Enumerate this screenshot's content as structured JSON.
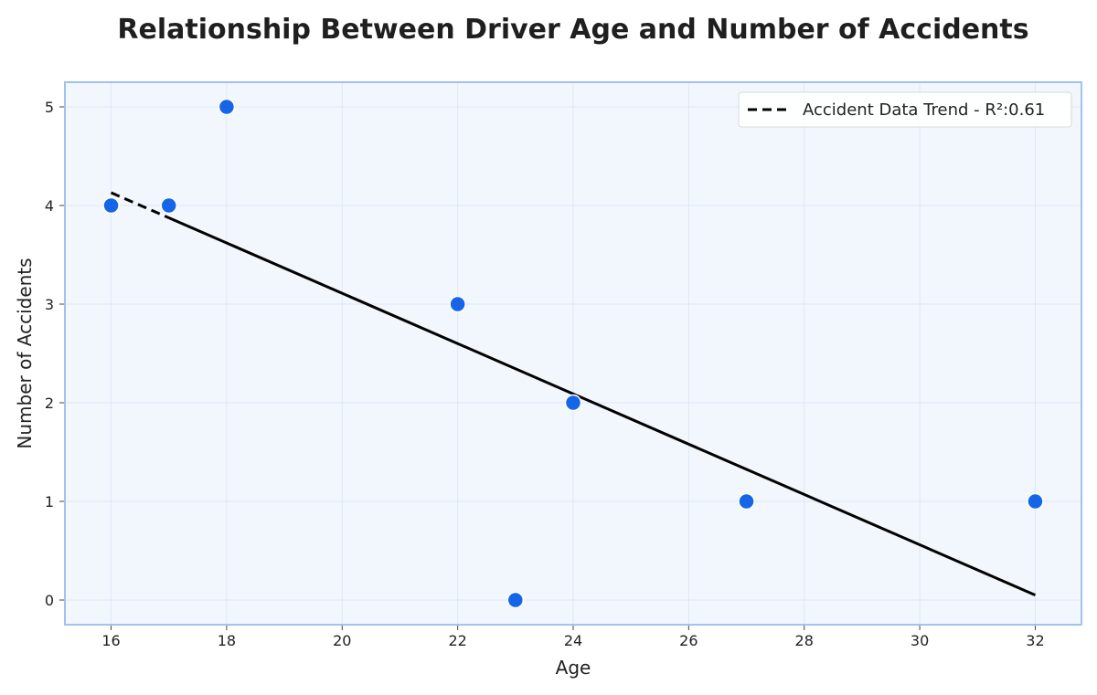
{
  "chart_data": {
    "type": "scatter",
    "title": "Relationship Between Driver Age and Number of Accidents",
    "xlabel": "Age",
    "ylabel": "Number of Accidents",
    "xlim": [
      15.2,
      32.8
    ],
    "ylim": [
      -0.25,
      5.25
    ],
    "xticks": [
      16,
      18,
      20,
      22,
      24,
      26,
      28,
      30,
      32
    ],
    "yticks": [
      0,
      1,
      2,
      3,
      4,
      5
    ],
    "grid": true,
    "legend_position": "top-right",
    "series": [
      {
        "type": "scatter",
        "x": [
          16,
          17,
          18,
          22,
          23,
          24,
          27,
          32
        ],
        "y": [
          4,
          4,
          5,
          3,
          0,
          2,
          1,
          1
        ],
        "color": "#1565e8"
      },
      {
        "type": "line",
        "name": "Accident Data Trend - R²:0.61",
        "x": [
          16,
          32
        ],
        "y": [
          4.13,
          0.05
        ],
        "color": "#000000",
        "dashed_until_x": 17
      }
    ],
    "colors": {
      "plot_background": "#f2f7fd",
      "plot_border": "#9fc2ee",
      "grid": "#dde7f7"
    }
  }
}
